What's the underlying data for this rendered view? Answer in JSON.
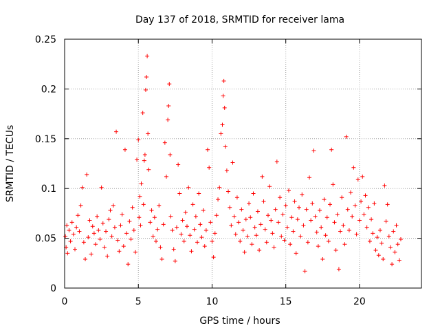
{
  "chart_data": {
    "type": "scatter",
    "title": "Day 137 of 2018, SRMTID for receiver lama",
    "xlabel": "GPS time / hours",
    "ylabel": "SRMTID / TECUs",
    "xlim": [
      0,
      24.2
    ],
    "ylim": [
      0,
      0.25
    ],
    "grid": true,
    "xticks": [
      0,
      5,
      10,
      15,
      20
    ],
    "xtick_labels": [
      "0",
      "5",
      "10",
      "15",
      "20"
    ],
    "yticks": [
      0,
      0.05,
      0.1,
      0.15,
      0.2,
      0.25
    ],
    "ytick_labels": [
      "0",
      "0.05",
      "0.1",
      "0.15",
      "0.2",
      "0.25"
    ],
    "series": [
      {
        "name": "SRMTID",
        "marker": "+",
        "color": "#ff0000",
        "points": [
          [
            0.05,
            0.052
          ],
          [
            0.1,
            0.041
          ],
          [
            0.15,
            0.063
          ],
          [
            0.2,
            0.035
          ],
          [
            0.3,
            0.058
          ],
          [
            0.4,
            0.047
          ],
          [
            0.5,
            0.066
          ],
          [
            0.6,
            0.054
          ],
          [
            0.7,
            0.039
          ],
          [
            0.8,
            0.061
          ],
          [
            0.9,
            0.073
          ],
          [
            1.0,
            0.057
          ],
          [
            1.1,
            0.083
          ],
          [
            1.2,
            0.101
          ],
          [
            1.3,
            0.046
          ],
          [
            1.4,
            0.029
          ],
          [
            1.5,
            0.114
          ],
          [
            1.6,
            0.051
          ],
          [
            1.7,
            0.068
          ],
          [
            1.8,
            0.034
          ],
          [
            1.9,
            0.062
          ],
          [
            2.0,
            0.055
          ],
          [
            2.1,
            0.044
          ],
          [
            2.2,
            0.072
          ],
          [
            2.3,
            0.058
          ],
          [
            2.4,
            0.049
          ],
          [
            2.5,
            0.101
          ],
          [
            2.6,
            0.065
          ],
          [
            2.7,
            0.041
          ],
          [
            2.8,
            0.057
          ],
          [
            2.9,
            0.032
          ],
          [
            3.0,
            0.069
          ],
          [
            3.1,
            0.078
          ],
          [
            3.2,
            0.052
          ],
          [
            3.3,
            0.083
          ],
          [
            3.4,
            0.061
          ],
          [
            3.5,
            0.157
          ],
          [
            3.6,
            0.048
          ],
          [
            3.7,
            0.037
          ],
          [
            3.8,
            0.063
          ],
          [
            3.9,
            0.074
          ],
          [
            4.0,
            0.042
          ],
          [
            4.1,
            0.139
          ],
          [
            4.2,
            0.055
          ],
          [
            4.3,
            0.024
          ],
          [
            4.4,
            0.067
          ],
          [
            4.5,
            0.049
          ],
          [
            4.6,
            0.081
          ],
          [
            4.7,
            0.058
          ],
          [
            4.8,
            0.036
          ],
          [
            4.9,
            0.129
          ],
          [
            5.0,
            0.149
          ],
          [
            5.05,
            0.071
          ],
          [
            5.1,
            0.092
          ],
          [
            5.15,
            0.063
          ],
          [
            5.2,
            0.105
          ],
          [
            5.3,
            0.176
          ],
          [
            5.35,
            0.084
          ],
          [
            5.4,
            0.128
          ],
          [
            5.45,
            0.134
          ],
          [
            5.5,
            0.199
          ],
          [
            5.55,
            0.212
          ],
          [
            5.6,
            0.233
          ],
          [
            5.65,
            0.155
          ],
          [
            5.7,
            0.119
          ],
          [
            5.8,
            0.066
          ],
          [
            5.9,
            0.078
          ],
          [
            6.0,
            0.052
          ],
          [
            6.1,
            0.071
          ],
          [
            6.2,
            0.047
          ],
          [
            6.3,
            0.059
          ],
          [
            6.4,
            0.083
          ],
          [
            6.5,
            0.041
          ],
          [
            6.6,
            0.029
          ],
          [
            6.7,
            0.064
          ],
          [
            6.8,
            0.146
          ],
          [
            6.9,
            0.112
          ],
          [
            7.0,
            0.169
          ],
          [
            7.05,
            0.183
          ],
          [
            7.1,
            0.205
          ],
          [
            7.15,
            0.134
          ],
          [
            7.2,
            0.072
          ],
          [
            7.3,
            0.058
          ],
          [
            7.4,
            0.039
          ],
          [
            7.5,
            0.027
          ],
          [
            7.6,
            0.061
          ],
          [
            7.7,
            0.124
          ],
          [
            7.8,
            0.095
          ],
          [
            7.9,
            0.054
          ],
          [
            8.0,
            0.068
          ],
          [
            8.1,
            0.047
          ],
          [
            8.2,
            0.076
          ],
          [
            8.3,
            0.062
          ],
          [
            8.4,
            0.101
          ],
          [
            8.5,
            0.053
          ],
          [
            8.6,
            0.037
          ],
          [
            8.7,
            0.084
          ],
          [
            8.8,
            0.059
          ],
          [
            8.9,
            0.072
          ],
          [
            9.0,
            0.046
          ],
          [
            9.1,
            0.095
          ],
          [
            9.2,
            0.064
          ],
          [
            9.3,
            0.051
          ],
          [
            9.4,
            0.078
          ],
          [
            9.5,
            0.042
          ],
          [
            9.6,
            0.058
          ],
          [
            9.7,
            0.139
          ],
          [
            9.8,
            0.121
          ],
          [
            9.9,
            0.066
          ],
          [
            10.0,
            0.047
          ],
          [
            10.1,
            0.031
          ],
          [
            10.2,
            0.055
          ],
          [
            10.3,
            0.073
          ],
          [
            10.4,
            0.089
          ],
          [
            10.5,
            0.101
          ],
          [
            10.6,
            0.155
          ],
          [
            10.7,
            0.164
          ],
          [
            10.75,
            0.193
          ],
          [
            10.8,
            0.208
          ],
          [
            10.85,
            0.181
          ],
          [
            10.9,
            0.142
          ],
          [
            11.0,
            0.118
          ],
          [
            11.1,
            0.097
          ],
          [
            11.2,
            0.081
          ],
          [
            11.3,
            0.063
          ],
          [
            11.4,
            0.126
          ],
          [
            11.5,
            0.072
          ],
          [
            11.6,
            0.054
          ],
          [
            11.7,
            0.091
          ],
          [
            11.8,
            0.066
          ],
          [
            11.9,
            0.047
          ],
          [
            12.0,
            0.079
          ],
          [
            12.1,
            0.058
          ],
          [
            12.2,
            0.036
          ],
          [
            12.3,
            0.069
          ],
          [
            12.4,
            0.052
          ],
          [
            12.5,
            0.085
          ],
          [
            12.6,
            0.071
          ],
          [
            12.7,
            0.044
          ],
          [
            12.8,
            0.095
          ],
          [
            12.9,
            0.061
          ],
          [
            13.0,
            0.053
          ],
          [
            13.1,
            0.077
          ],
          [
            13.2,
            0.038
          ],
          [
            13.3,
            0.064
          ],
          [
            13.4,
            0.112
          ],
          [
            13.5,
            0.087
          ],
          [
            13.6,
            0.059
          ],
          [
            13.7,
            0.046
          ],
          [
            13.8,
            0.073
          ],
          [
            13.9,
            0.102
          ],
          [
            14.0,
            0.068
          ],
          [
            14.1,
            0.055
          ],
          [
            14.2,
            0.041
          ],
          [
            14.3,
            0.079
          ],
          [
            14.4,
            0.127
          ],
          [
            14.5,
            0.066
          ],
          [
            14.6,
            0.091
          ],
          [
            14.7,
            0.052
          ],
          [
            14.8,
            0.074
          ],
          [
            14.9,
            0.048
          ],
          [
            15.0,
            0.083
          ],
          [
            15.1,
            0.061
          ],
          [
            15.2,
            0.098
          ],
          [
            15.3,
            0.044
          ],
          [
            15.4,
            0.071
          ],
          [
            15.5,
            0.057
          ],
          [
            15.6,
            0.087
          ],
          [
            15.7,
            0.035
          ],
          [
            15.8,
            0.069
          ],
          [
            15.9,
            0.081
          ],
          [
            16.0,
            0.052
          ],
          [
            16.1,
            0.094
          ],
          [
            16.2,
            0.063
          ],
          [
            16.3,
            0.017
          ],
          [
            16.4,
            0.079
          ],
          [
            16.5,
            0.046
          ],
          [
            16.6,
            0.111
          ],
          [
            16.7,
            0.068
          ],
          [
            16.8,
            0.085
          ],
          [
            16.9,
            0.138
          ],
          [
            17.0,
            0.072
          ],
          [
            17.1,
            0.056
          ],
          [
            17.2,
            0.042
          ],
          [
            17.3,
            0.078
          ],
          [
            17.4,
            0.061
          ],
          [
            17.5,
            0.029
          ],
          [
            17.6,
            0.089
          ],
          [
            17.7,
            0.053
          ],
          [
            17.8,
            0.071
          ],
          [
            17.9,
            0.047
          ],
          [
            18.0,
            0.084
          ],
          [
            18.1,
            0.139
          ],
          [
            18.2,
            0.104
          ],
          [
            18.3,
            0.066
          ],
          [
            18.4,
            0.038
          ],
          [
            18.5,
            0.074
          ],
          [
            18.6,
            0.019
          ],
          [
            18.7,
            0.057
          ],
          [
            18.8,
            0.091
          ],
          [
            18.9,
            0.063
          ],
          [
            19.0,
            0.044
          ],
          [
            19.1,
            0.152
          ],
          [
            19.2,
            0.079
          ],
          [
            19.3,
            0.058
          ],
          [
            19.4,
            0.096
          ],
          [
            19.5,
            0.072
          ],
          [
            19.6,
            0.121
          ],
          [
            19.7,
            0.083
          ],
          [
            19.8,
            0.054
          ],
          [
            19.9,
            0.109
          ],
          [
            20.0,
            0.068
          ],
          [
            20.1,
            0.087
          ],
          [
            20.2,
            0.112
          ],
          [
            20.3,
            0.074
          ],
          [
            20.4,
            0.093
          ],
          [
            20.5,
            0.061
          ],
          [
            20.6,
            0.081
          ],
          [
            20.7,
            0.047
          ],
          [
            20.8,
            0.069
          ],
          [
            20.9,
            0.055
          ],
          [
            21.0,
            0.085
          ],
          [
            21.1,
            0.038
          ],
          [
            21.2,
            0.051
          ],
          [
            21.3,
            0.033
          ],
          [
            21.4,
            0.058
          ],
          [
            21.5,
            0.045
          ],
          [
            21.6,
            0.029
          ],
          [
            21.7,
            0.103
          ],
          [
            21.8,
            0.067
          ],
          [
            21.9,
            0.084
          ],
          [
            22.0,
            0.052
          ],
          [
            22.1,
            0.041
          ],
          [
            22.2,
            0.024
          ],
          [
            22.3,
            0.057
          ],
          [
            22.4,
            0.036
          ],
          [
            22.5,
            0.063
          ],
          [
            22.6,
            0.044
          ],
          [
            22.7,
            0.028
          ],
          [
            22.8,
            0.049
          ]
        ]
      }
    ]
  }
}
